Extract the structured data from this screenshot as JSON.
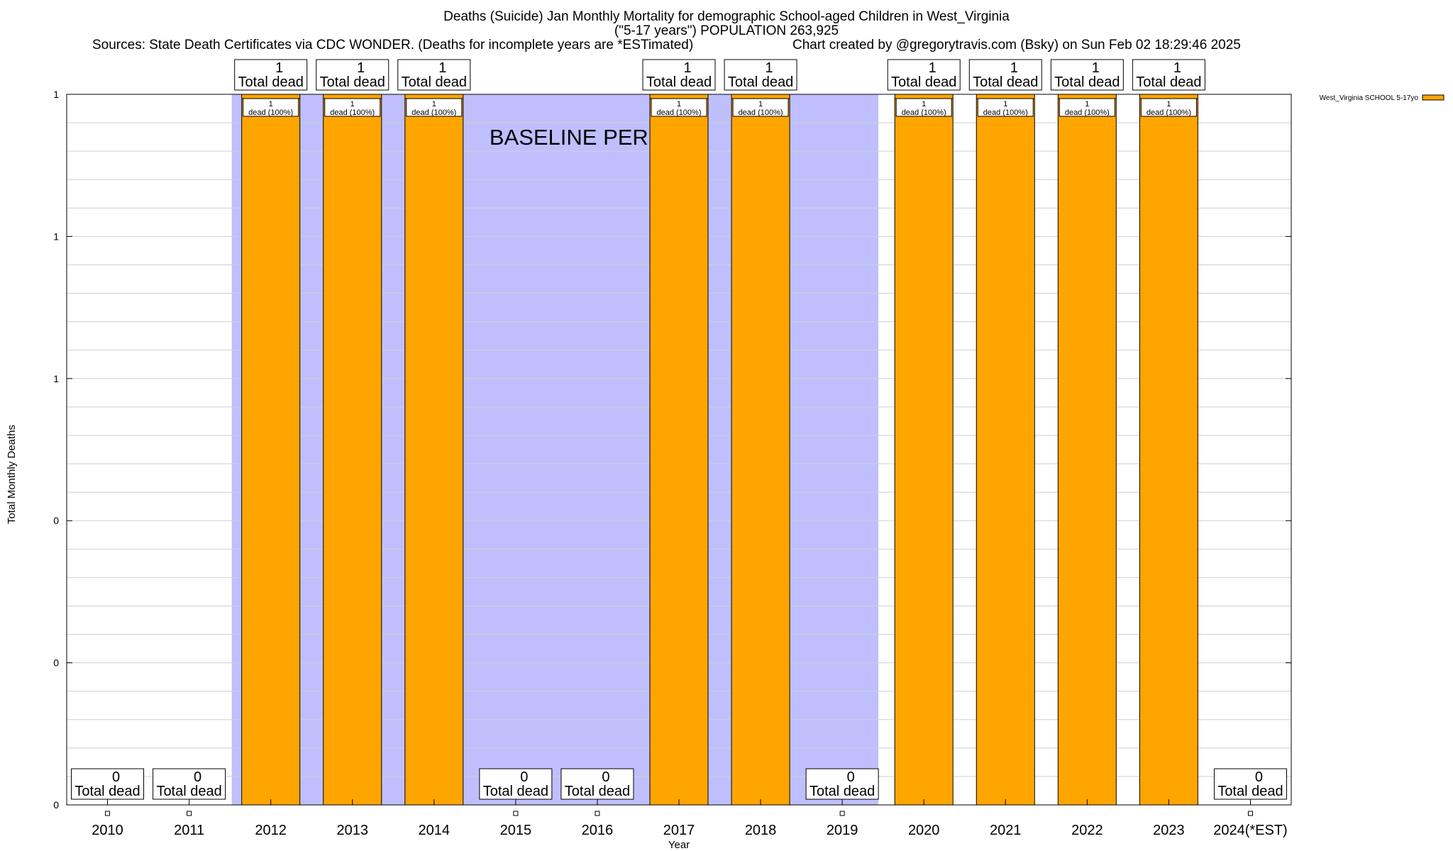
{
  "header": {
    "title_line1": "Deaths (Suicide) Jan Monthly Mortality for demographic School-aged Children in West_Virginia",
    "title_line2": "(\"5-17 years\") POPULATION 263,925",
    "sources": "Sources: State Death Certificates via CDC WONDER. (Deaths for incomplete years are *ESTimated)",
    "credit": "Chart created by @gregorytravis.com (Bsky) on Sun Feb 02 18:29:46 2025"
  },
  "chart_data": {
    "type": "bar",
    "xlabel": "Year",
    "ylabel": "Total Monthly Deaths",
    "ylim": [
      0,
      1
    ],
    "y_tick_labels": [
      "0",
      "0",
      "0",
      "1",
      "1",
      "1"
    ],
    "categories": [
      "2010",
      "2011",
      "2012",
      "2013",
      "2014",
      "2015",
      "2016",
      "2017",
      "2018",
      "2019",
      "2020",
      "2021",
      "2022",
      "2023",
      "2024(*EST)"
    ],
    "series": [
      {
        "name": "West_Virginia SCHOOL 5-17yo",
        "color": "#ffa500",
        "values": [
          0,
          0,
          1,
          1,
          1,
          0,
          0,
          1,
          1,
          0,
          1,
          1,
          1,
          1,
          0
        ]
      }
    ],
    "total_labels": [
      "0",
      "0",
      "1",
      "1",
      "1",
      "0",
      "0",
      "1",
      "1",
      "0",
      "1",
      "1",
      "1",
      "1",
      "0"
    ],
    "total_suffix": "Total dead",
    "bar_labels": [
      "",
      "",
      "1\ndead (100%)",
      "1\ndead (100%)",
      "1\ndead (100%)",
      "",
      "",
      "1\ndead (100%)",
      "1\ndead (100%)",
      "",
      "1\ndead (100%)",
      "1\ndead (100%)",
      "1\ndead (100%)",
      "1\ndead (100%)",
      ""
    ],
    "shaded_regions": [
      {
        "from": "2012",
        "to": "2019",
        "color": "#bfbffe",
        "label": "BASELINE PERIOD"
      }
    ],
    "grid": true,
    "legend_position": "top-right"
  }
}
